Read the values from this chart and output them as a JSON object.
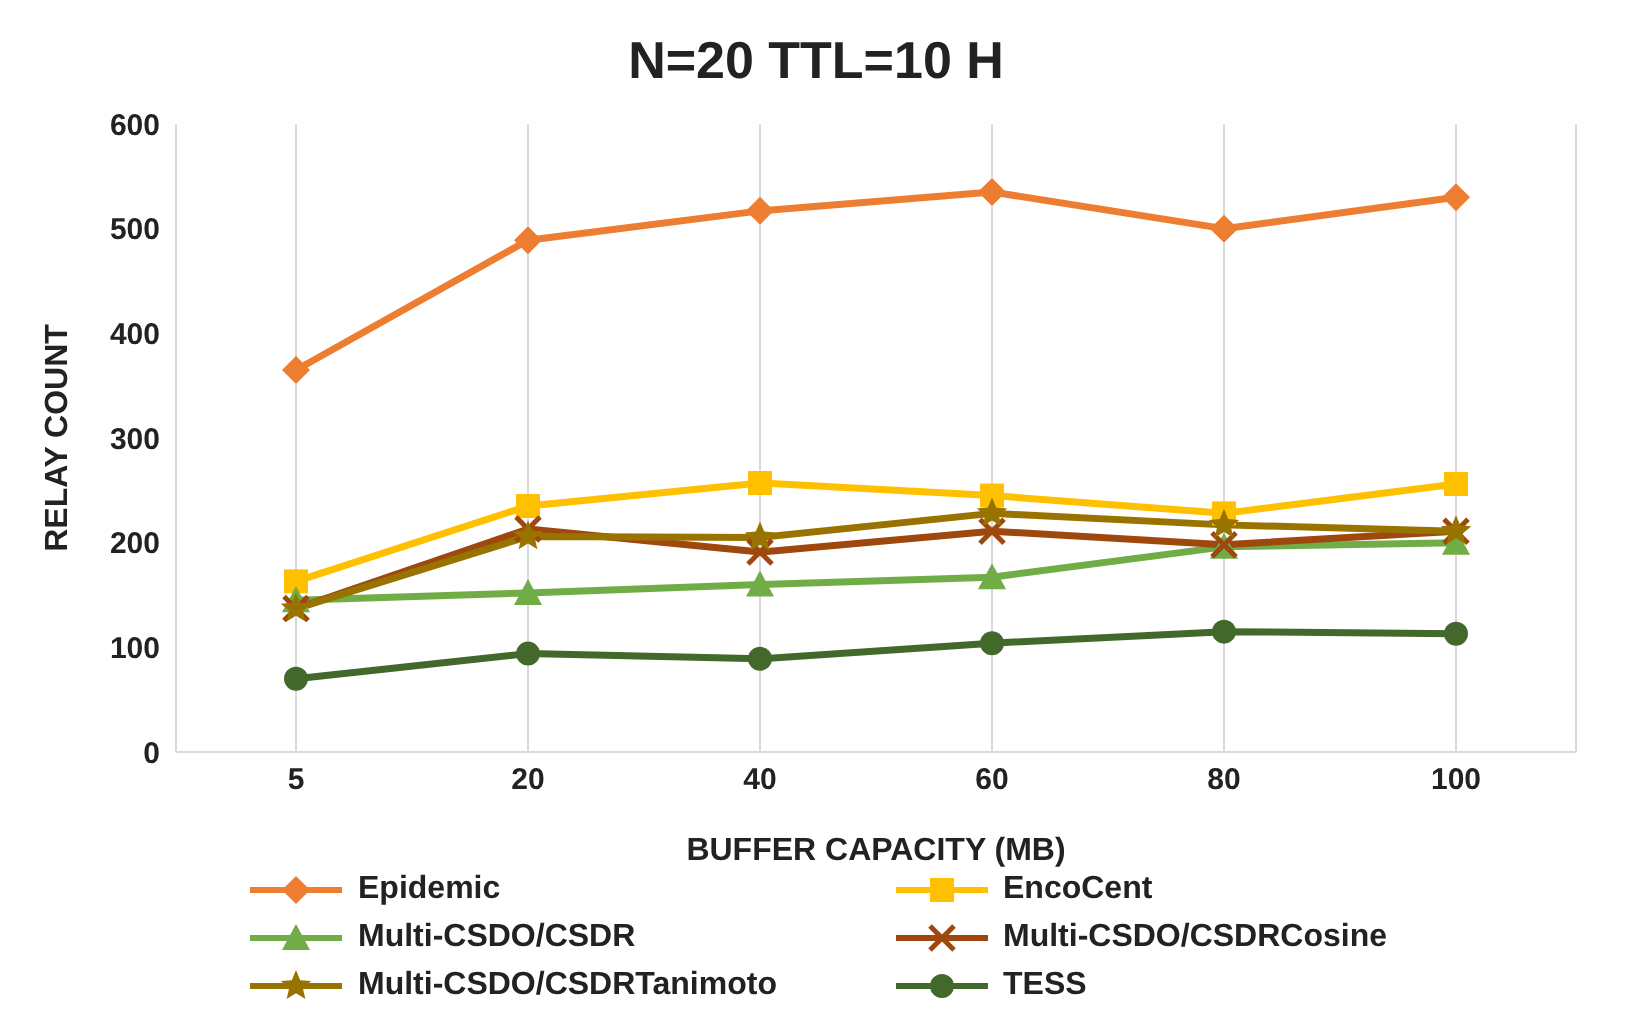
{
  "chart_data": {
    "type": "line",
    "title": "N=20 TTL=10 H",
    "xlabel": "BUFFER CAPACITY (MB)",
    "ylabel": "RELAY COUNT",
    "categories": [
      "5",
      "20",
      "40",
      "60",
      "80",
      "100"
    ],
    "series": [
      {
        "name": "Epidemic",
        "color": "#ed7d31",
        "marker": "diamond",
        "values": [
          365,
          489,
          517,
          535,
          500,
          530
        ]
      },
      {
        "name": "EncoCent",
        "color": "#ffc000",
        "marker": "square",
        "values": [
          163,
          235,
          257,
          245,
          228,
          256
        ]
      },
      {
        "name": "Multi-CSDO/CSDR",
        "color": "#70ad47",
        "marker": "triangle",
        "values": [
          145,
          152,
          160,
          167,
          196,
          200
        ]
      },
      {
        "name": "Multi-CSDO/CSDRCosine",
        "color": "#9e480e",
        "marker": "cross",
        "values": [
          137,
          213,
          191,
          211,
          198,
          211
        ]
      },
      {
        "name": "Multi-CSDO/CSDRTanimoto",
        "color": "#997300",
        "marker": "star",
        "values": [
          137,
          206,
          205,
          228,
          217,
          211
        ]
      },
      {
        "name": "TESS",
        "color": "#43682b",
        "marker": "circle",
        "values": [
          70,
          94,
          89,
          104,
          115,
          113
        ]
      }
    ],
    "ylim": [
      0,
      600
    ],
    "yticks": [
      0,
      100,
      200,
      300,
      400,
      500,
      600
    ],
    "grid": "x",
    "legend": "bottom"
  }
}
